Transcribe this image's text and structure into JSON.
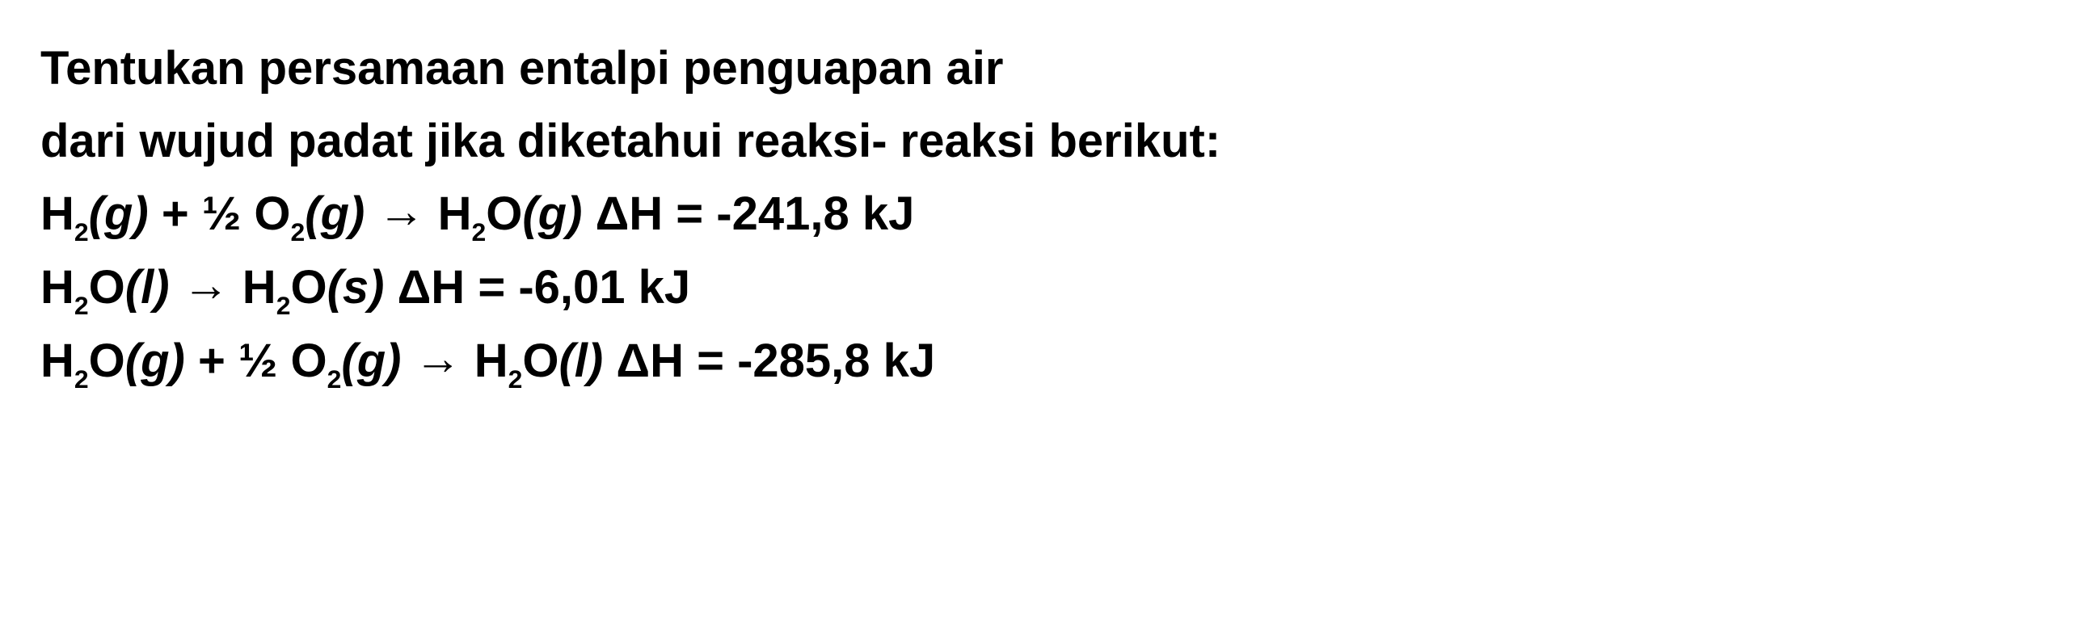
{
  "style": {
    "font_family": "Arial",
    "font_size_pt": 44,
    "font_weight": "bold",
    "text_color": "#000000",
    "background_color": "#ffffff",
    "line_height": 1.55
  },
  "text": {
    "line1": "Tentukan persamaan entalpi penguapan air",
    "line2": "dari wujud padat jika diketahui reaksi- reaksi berikut:"
  },
  "equations": [
    {
      "reactants": [
        {
          "formula": "H",
          "sub": "2",
          "state": "g"
        },
        {
          "prefix": "½ ",
          "formula": "O",
          "sub": "2",
          "state": "g"
        }
      ],
      "products": [
        {
          "formula": "H",
          "sub": "2",
          "formula2": "O",
          "state": "g"
        }
      ],
      "arrow": "→",
      "delta_h_label": "ΔH",
      "equals": "=",
      "value": "-241,8",
      "unit": "kJ"
    },
    {
      "reactants": [
        {
          "formula": "H",
          "sub": "2",
          "formula2": "O",
          "state": "l"
        }
      ],
      "products": [
        {
          "formula": "H",
          "sub": "2",
          "formula2": "O",
          "state": "s"
        }
      ],
      "arrow": "→",
      "delta_h_label": "ΔH",
      "equals": "=",
      "value": "-6,01",
      "unit": "kJ"
    },
    {
      "reactants": [
        {
          "formula": "H",
          "sub": "2",
          "formula2": "O",
          "state": "g"
        },
        {
          "prefix": "½ ",
          "formula": "O",
          "sub": "2",
          "state": "g"
        }
      ],
      "products": [
        {
          "formula": "H",
          "sub": "2",
          "formula2": "O",
          "state": "l"
        }
      ],
      "arrow": "→",
      "delta_h_label": "ΔH",
      "equals": "=",
      "value": "-285,8",
      "unit": "kJ"
    }
  ]
}
